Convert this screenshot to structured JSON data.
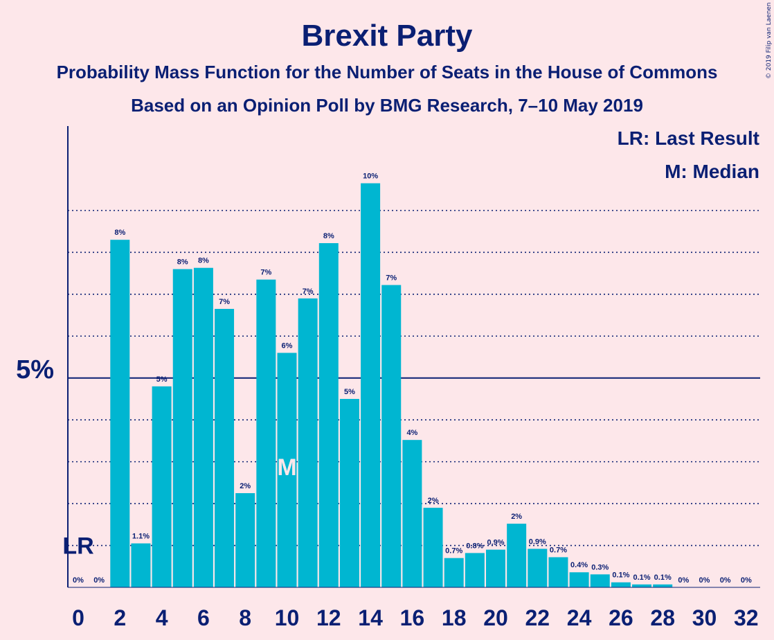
{
  "chart_data": {
    "type": "bar",
    "title": "Brexit Party",
    "subtitle": "Probability Mass Function for the Number of Seats in the House of Commons",
    "subtitle2": "Based on an Opinion Poll by BMG Research, 7–10 May 2019",
    "copyright": "© 2019 Filip van Laenen",
    "legend": {
      "lr": "LR: Last Result",
      "m": "M: Median",
      "placement": "top-right"
    },
    "x": [
      0,
      1,
      2,
      3,
      4,
      5,
      6,
      7,
      8,
      9,
      10,
      11,
      12,
      13,
      14,
      15,
      16,
      17,
      18,
      19,
      20,
      21,
      22,
      23,
      24,
      25,
      26,
      27,
      28,
      29,
      30,
      31,
      32
    ],
    "values": [
      0,
      0,
      8.3,
      1.05,
      4.8,
      7.6,
      7.63,
      6.65,
      2.25,
      7.35,
      5.6,
      6.9,
      8.22,
      4.5,
      9.65,
      7.22,
      3.52,
      1.9,
      0.7,
      0.82,
      0.9,
      1.52,
      0.92,
      0.72,
      0.36,
      0.31,
      0.12,
      0.07,
      0.07,
      0,
      0,
      0,
      0
    ],
    "bar_labels": [
      "0%",
      "0%",
      "8%",
      "1.1%",
      "5%",
      "8%",
      "8%",
      "7%",
      "2%",
      "7%",
      "6%",
      "7%",
      "8%",
      "5%",
      "10%",
      "7%",
      "4%",
      "2%",
      "0.7%",
      "0.8%",
      "0.9%",
      "2%",
      "0.9%",
      "0.7%",
      "0.4%",
      "0.3%",
      "0.1%",
      "0.1%",
      "0.1%",
      "0%",
      "0%",
      "0%",
      "0%"
    ],
    "x_tick_labels": [
      "0",
      "2",
      "4",
      "6",
      "8",
      "10",
      "12",
      "14",
      "16",
      "18",
      "20",
      "22",
      "24",
      "26",
      "28",
      "30",
      "32"
    ],
    "y_tick_label": "5%",
    "y_tick_value": 5,
    "ylim": [
      0,
      10.5
    ],
    "gridlines": [
      1,
      2,
      3,
      4,
      6,
      7,
      8,
      9
    ],
    "last_result": {
      "seats": 0,
      "label": "LR",
      "value": 1
    },
    "median": {
      "seats": 10,
      "label": "M"
    },
    "colors": {
      "bar": "#00b6d1",
      "text": "#0a1f73",
      "background": "#fde7ea",
      "marker": "#fde7ea"
    }
  }
}
